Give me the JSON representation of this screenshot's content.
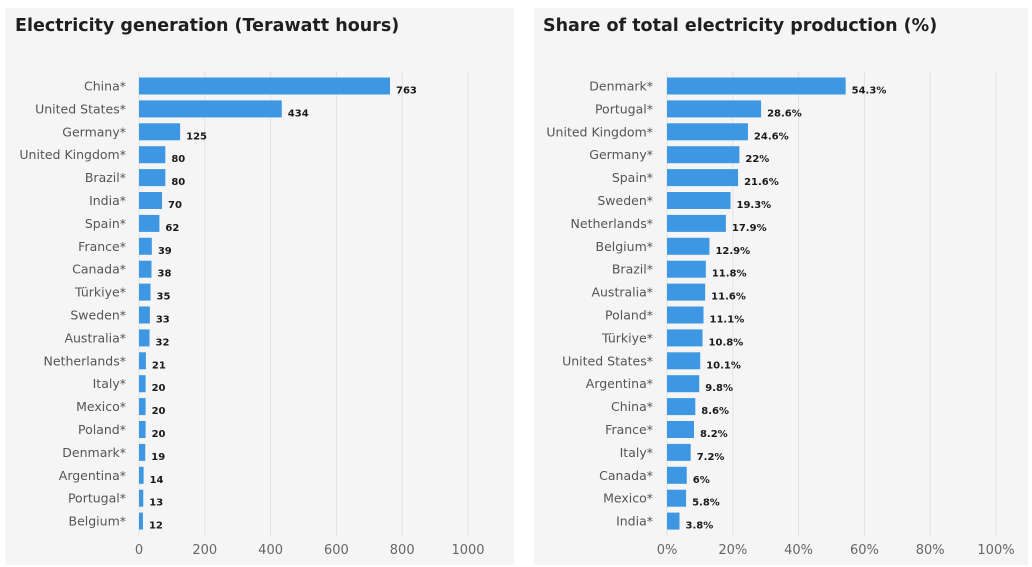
{
  "chart_data": [
    {
      "type": "bar",
      "orientation": "horizontal",
      "title": "Electricity generation (Terawatt hours)",
      "categories": [
        "China*",
        "United States*",
        "Germany*",
        "United Kingdom*",
        "Brazil*",
        "India*",
        "Spain*",
        "France*",
        "Canada*",
        "Türkiye*",
        "Sweden*",
        "Australia*",
        "Netherlands*",
        "Italy*",
        "Mexico*",
        "Poland*",
        "Denmark*",
        "Argentina*",
        "Portugal*",
        "Belgium*"
      ],
      "values": [
        763,
        434,
        125,
        80,
        80,
        70,
        62,
        39,
        38,
        35,
        33,
        32,
        21,
        20,
        20,
        20,
        19,
        14,
        13,
        12
      ],
      "value_labels": [
        "763",
        "434",
        "125",
        "80",
        "80",
        "70",
        "62",
        "39",
        "38",
        "35",
        "33",
        "32",
        "21",
        "20",
        "20",
        "20",
        "19",
        "14",
        "13",
        "12"
      ],
      "xlim": [
        0,
        1000
      ],
      "xticks": [
        0,
        200,
        400,
        600,
        800,
        1000
      ],
      "xtick_labels": [
        "0",
        "200",
        "400",
        "600",
        "800",
        "1000"
      ],
      "grid": true,
      "bar_color": "#3d97e3"
    },
    {
      "type": "bar",
      "orientation": "horizontal",
      "title": "Share of total electricity production (%)",
      "categories": [
        "Denmark*",
        "Portugal*",
        "United Kingdom*",
        "Germany*",
        "Spain*",
        "Sweden*",
        "Netherlands*",
        "Belgium*",
        "Brazil*",
        "Australia*",
        "Poland*",
        "Türkiye*",
        "United States*",
        "Argentina*",
        "China*",
        "France*",
        "Italy*",
        "Canada*",
        "Mexico*",
        "India*"
      ],
      "values": [
        54.3,
        28.6,
        24.6,
        22,
        21.6,
        19.3,
        17.9,
        12.9,
        11.8,
        11.6,
        11.1,
        10.8,
        10.1,
        9.8,
        8.6,
        8.2,
        7.2,
        6,
        5.8,
        3.8
      ],
      "value_labels": [
        "54.3%",
        "28.6%",
        "24.6%",
        "22%",
        "21.6%",
        "19.3%",
        "17.9%",
        "12.9%",
        "11.8%",
        "11.6%",
        "11.1%",
        "10.8%",
        "10.1%",
        "9.8%",
        "8.6%",
        "8.2%",
        "7.2%",
        "6%",
        "5.8%",
        "3.8%"
      ],
      "xlim": [
        0,
        100
      ],
      "xticks": [
        0,
        20,
        40,
        60,
        80,
        100
      ],
      "xtick_labels": [
        "0%",
        "20%",
        "40%",
        "60%",
        "80%",
        "100%"
      ],
      "grid": true,
      "bar_color": "#3d97e3"
    }
  ]
}
